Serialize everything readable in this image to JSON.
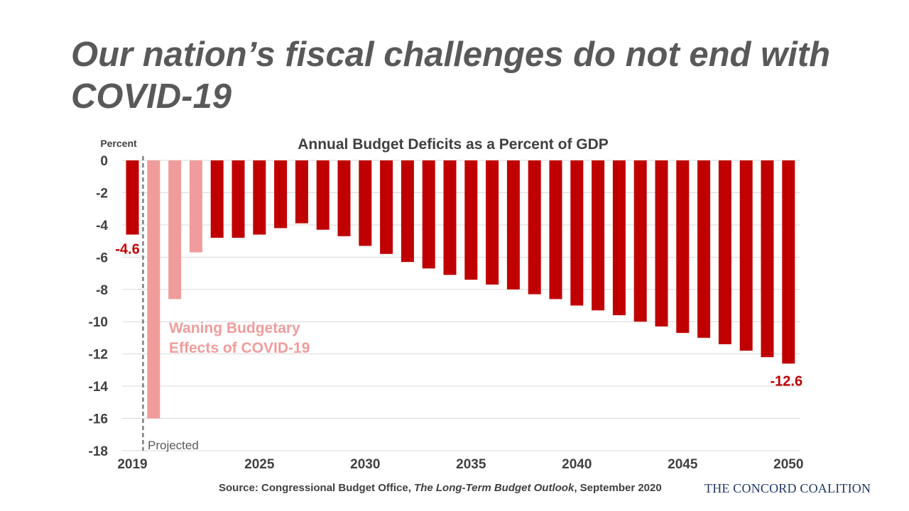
{
  "slide": {
    "title": "Our nation’s fiscal challenges do not end with COVID-19",
    "source_prefix": "Source: Congressional Budget Office,",
    "source_publication": "The Long-Term Budget Outlook",
    "source_suffix": ", September 2020",
    "logo_text": "THE CONCORD COALITION"
  },
  "colors": {
    "bar_actual": "#C00000",
    "bar_covid": "#F19C9C",
    "grid": "#D9D9D9",
    "title_text": "#595959",
    "axis_text": "#404040",
    "logo": "#1F3864"
  },
  "chart_data": {
    "type": "bar",
    "title": "Annual Budget Deficits as a Percent of GDP",
    "ylabel": "Percent",
    "xlabel": "",
    "ylim": [
      -18,
      0
    ],
    "yticks": [
      0,
      -2,
      -4,
      -6,
      -8,
      -10,
      -12,
      -14,
      -16,
      -18
    ],
    "xtick_labels": [
      "2019",
      "2025",
      "2030",
      "2035",
      "2040",
      "2045",
      "2050"
    ],
    "grid": true,
    "categories": [
      2019,
      2020,
      2021,
      2022,
      2023,
      2024,
      2025,
      2026,
      2027,
      2028,
      2029,
      2030,
      2031,
      2032,
      2033,
      2034,
      2035,
      2036,
      2037,
      2038,
      2039,
      2040,
      2041,
      2042,
      2043,
      2044,
      2045,
      2046,
      2047,
      2048,
      2049,
      2050
    ],
    "values": [
      -4.6,
      -16.0,
      -8.6,
      -5.7,
      -4.8,
      -4.8,
      -4.6,
      -4.2,
      -3.9,
      -4.3,
      -4.7,
      -5.3,
      -5.8,
      -6.3,
      -6.7,
      -7.1,
      -7.4,
      -7.7,
      -8.0,
      -8.3,
      -8.6,
      -9.0,
      -9.3,
      -9.6,
      -10.0,
      -10.3,
      -10.7,
      -11.0,
      -11.4,
      -11.8,
      -12.2,
      -12.6
    ],
    "highlight_years": [
      2020,
      2021,
      2022
    ],
    "projection_start": 2019.5,
    "annotations": {
      "projected": "Projected",
      "covid_line1": "Waning Budgetary",
      "covid_line2": "Effects of COVID-19",
      "first_value_label": "-4.6",
      "last_value_label": "-12.6"
    }
  }
}
